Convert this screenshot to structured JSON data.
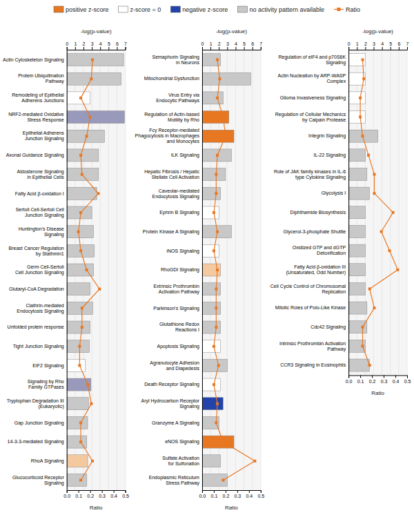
{
  "chart_data": [
    {
      "type": "bar",
      "orientation": "horizontal",
      "grid": true,
      "legend": "top",
      "ylabel": "-log(p-value)",
      "y2label": "Ratio",
      "ylim": [
        0,
        7
      ],
      "yticks": [
        0,
        1,
        2,
        3,
        4,
        5,
        6,
        7
      ],
      "y2lim": [
        0.0,
        0.5
      ],
      "y2ticks": [
        {
          "value": 0.0,
          "label": "0.0"
        },
        0.1,
        0.2,
        0.3,
        0.4,
        0.5
      ],
      "legend_entries": [
        {
          "name": "positive z-score",
          "color": "#e87722"
        },
        {
          "name": "z-score = 0",
          "color": "#ffffff"
        },
        {
          "name": "negative z-score",
          "color": "#2244aa"
        },
        {
          "name": "no activity pattern available",
          "color": "#c8c8c8"
        }
      ],
      "categories": [
        "Actin Cytoskeleton Signaling",
        "Protein Ubiquitination\nPathway",
        "Remodeling of Epithelial\nAdherens Junctions",
        "NRF2-mediated Oxidative\nStress Response",
        "Epithelial Adherens\nJunction Signaling",
        "Axonal Guidance Signaling",
        "Aldosterone Signaling\nin Epithelial Cells",
        "Fatty Acid β-oxidation I",
        "Sertoli Cell-Sertoli Cell\nJunction Signaling",
        "Huntington's Disease\nSignaling",
        "Breast Cancer Regulation\nby Stathmin1",
        "Germ Cell-Sertoli\nCell Junction Signaling",
        "Glutaryl-CoA Degradation",
        "Clathrin-mediated\nEndocytosis Signaling",
        "Unfolded protein response",
        "Tight Junction Signaling",
        "EIF2 Signaling",
        "Signaling by Rho\nFamily GTPases",
        "Tryptophan Degradation III\n(Eukaryotic)",
        "Gap Junction Signaling",
        "14-3-3-mediated Signaling",
        "RhoA Signaling",
        "Glucocorticoid Receptor\nSignaling"
      ],
      "series": [
        {
          "type": "bar",
          "values": [
            6.8,
            6.5,
            2.8,
            6.9,
            4.5,
            3.8,
            3.8,
            3.6,
            3.0,
            3.2,
            3.3,
            3.2,
            2.8,
            3.1,
            2.8,
            2.7,
            2.2,
            2.9,
            2.6,
            2.5,
            2.4,
            2.5,
            2.4
          ],
          "colors": [
            "#c8c8c8",
            "#c8c8c8",
            "#ffffff",
            "#9999bb",
            "#c8c8c8",
            "#c8c8c8",
            "#c8c8c8",
            "#c8c8c8",
            "#c8c8c8",
            "#c8c8c8",
            "#c8c8c8",
            "#c8c8c8",
            "#c8c8c8",
            "#c8c8c8",
            "#c8c8c8",
            "#c8c8c8",
            "#ffffff",
            "#9999bb",
            "#c8c8c8",
            "#c8c8c8",
            "#c8c8c8",
            "#f5c9a0",
            "#c8c8c8"
          ]
        },
        {
          "type": "line",
          "name": "Ratio",
          "axis": "y2",
          "color": "#e87722",
          "marker": "square",
          "values": [
            0.22,
            0.21,
            0.12,
            0.2,
            0.17,
            0.12,
            0.13,
            0.27,
            0.12,
            0.1,
            0.12,
            0.17,
            0.28,
            0.13,
            0.13,
            0.11,
            0.11,
            0.18,
            0.21,
            0.12,
            0.12,
            0.22,
            0.12
          ]
        }
      ]
    },
    {
      "type": "bar",
      "orientation": "horizontal",
      "grid": true,
      "ylabel": "-log(p-value)",
      "y2label": "Ratio",
      "ylim": [
        0,
        7
      ],
      "yticks": [
        0,
        1,
        2,
        3,
        4,
        5,
        6,
        7
      ],
      "y2lim": [
        0.0,
        0.5
      ],
      "y2ticks": [
        {
          "value": 0.0,
          "label": "0.0"
        },
        0.1,
        0.2,
        0.3,
        0.4,
        0.5
      ],
      "categories": [
        "Semaphorin Signaling\nin Neurons",
        "Mitochondrial Dysfunction",
        "Virus Entry via\nEndocytic Pathways",
        "Regulation of Actin-based\nMotility by Rho",
        "Fcγ Receptor-mediated\nPhagocytosis in Macrophages\nand Monocytes",
        "ILK Signaling",
        "Hepatic Fibrosis / Hepatic\nStellate Cell Activation",
        "Caveolar-mediated\nEndocytosis Signaling",
        "Ephrin B Signaling",
        "Protein Kinase A Signaling",
        "iNOS Signaling",
        "RhoGDI Signaling",
        "Extrinsic Prothrombin\nActivation Pathway",
        "Parkinson's Signaling",
        "Glutathione Redox\nReactions I",
        "Apoptosis Signaling",
        "Agranulocyte Adhesion\nand Diapedesis",
        "Death Receptor Signaling",
        "Aryl Hydrocarbon Receptor\nSignaling",
        "Granzyme A Signaling",
        "eNOS Signaling",
        "Sulfate Activation\nfor Sulfonation",
        "Endoplasmic Reticulum\nStress Pathway"
      ],
      "series": [
        {
          "type": "bar",
          "values": [
            2.2,
            5.8,
            2.5,
            3.2,
            3.8,
            3.5,
            2.8,
            2.2,
            2.0,
            3.5,
            2.0,
            2.2,
            2.2,
            2.2,
            2.2,
            2.2,
            3.0,
            2.2,
            2.5,
            2.0,
            3.8,
            2.2,
            3.0
          ],
          "colors": [
            "#c8c8c8",
            "#c8c8c8",
            "#c8c8c8",
            "#e87722",
            "#e87722",
            "#c8c8c8",
            "#c8c8c8",
            "#c8c8c8",
            "#ffffff",
            "#c8c8c8",
            "#ffffff",
            "#f5c9a0",
            "#c8c8c8",
            "#c8c8c8",
            "#c8c8c8",
            "#ffffff",
            "#c8c8c8",
            "#ffffff",
            "#2244aa",
            "#c8c8c8",
            "#e87722",
            "#c8c8c8",
            "#c8c8c8"
          ]
        },
        {
          "type": "line",
          "axis": "y2",
          "color": "#e87722",
          "marker": "square",
          "values": [
            0.13,
            0.15,
            0.13,
            0.18,
            0.2,
            0.13,
            0.12,
            0.12,
            0.1,
            0.13,
            0.1,
            0.13,
            0.12,
            0.12,
            0.12,
            0.1,
            0.14,
            0.1,
            0.13,
            0.12,
            0.18,
            0.45,
            0.18
          ]
        }
      ]
    },
    {
      "type": "bar",
      "orientation": "horizontal",
      "grid": true,
      "ylabel": "-log(p-value)",
      "y2label": "Ratio",
      "ylim": [
        0,
        7
      ],
      "yticks": [
        0,
        1,
        2,
        3,
        4,
        5,
        6,
        7
      ],
      "y2lim": [
        0.0,
        0.5
      ],
      "y2ticks": [
        {
          "value": 0.0,
          "label": "0.0"
        },
        0.1,
        0.2,
        0.3,
        0.4,
        0.5
      ],
      "categories": [
        "Regulation of eIF4 and p70S6K\nSignaling",
        "Actin Nucleation by ARP-WASP\nComplex",
        "Glioma Invasiveness Signaling",
        "Regulation of Cellular Mechanics\nby Calpain Protease",
        "Integrin Signaling",
        "IL-22 Signaling",
        "Role of JAK family kinases in IL-6\ntype Cytokine Signaling",
        "Glycolysis I",
        "Diphthamide Biosynthesis",
        "Glycerol-3-phosphate Shuttle",
        "Oxidized GTP and dGTP\nDetoxification",
        "Fatty Acid β-oxidation III\n(Unsaturated, Odd Number)",
        "Cell Cycle Control of Chromosomal\nReplication",
        "Mitotic Roles of Polo-Like Kinase",
        "Cdc42 Signaling",
        "Intrinsic Prothrombin Activation\nPathway",
        "CCR3 Signaling in Eosinophils"
      ],
      "series": [
        {
          "type": "bar",
          "values": [
            2.0,
            2.0,
            2.0,
            2.0,
            3.5,
            2.0,
            2.2,
            2.5,
            2.0,
            2.0,
            2.0,
            2.0,
            2.0,
            2.2,
            2.2,
            2.0,
            2.5
          ],
          "colors": [
            "#ffffff",
            "#ffffff",
            "#ffffff",
            "#ffffff",
            "#c8c8c8",
            "#c8c8c8",
            "#c8c8c8",
            "#c8c8c8",
            "#c8c8c8",
            "#c8c8c8",
            "#c8c8c8",
            "#c8c8c8",
            "#c8c8c8",
            "#c8c8c8",
            "#c8c8c8",
            "#c8c8c8",
            "#c8c8c8"
          ]
        },
        {
          "type": "line",
          "axis": "y2",
          "color": "#e87722",
          "marker": "square",
          "values": [
            0.12,
            0.13,
            0.1,
            0.1,
            0.12,
            0.17,
            0.22,
            0.22,
            0.38,
            0.28,
            0.35,
            0.42,
            0.18,
            0.22,
            0.12,
            0.12,
            0.18
          ]
        }
      ]
    }
  ]
}
